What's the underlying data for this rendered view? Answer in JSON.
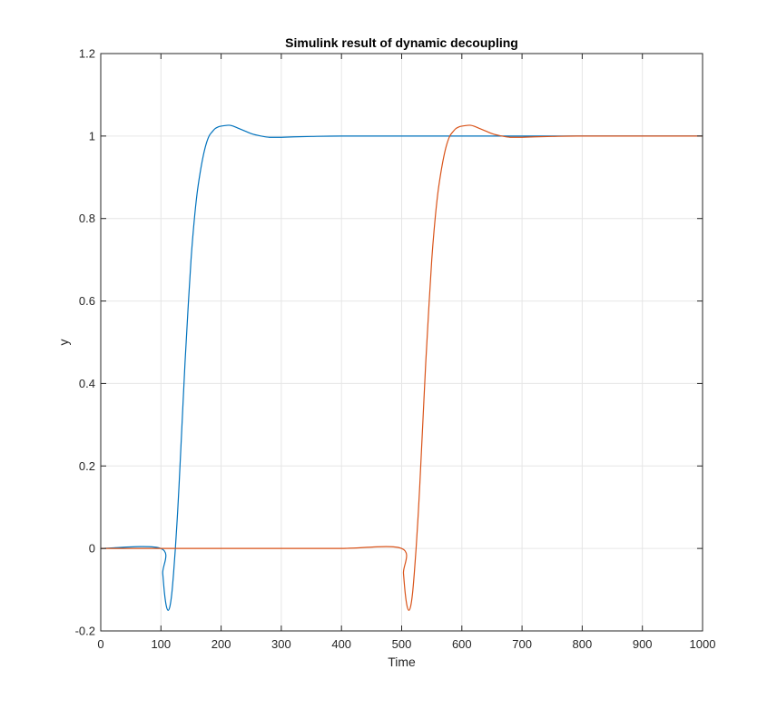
{
  "chart_data": {
    "type": "line",
    "title": "Simulink result of dynamic decoupling",
    "xlabel": "Time",
    "ylabel": "y",
    "xlim": [
      0,
      1000
    ],
    "ylim": [
      -0.2,
      1.2
    ],
    "xticks": [
      0,
      100,
      200,
      300,
      400,
      500,
      600,
      700,
      800,
      900,
      1000
    ],
    "yticks": [
      -0.2,
      0,
      0.2,
      0.4,
      0.6,
      0.8,
      1,
      1.2
    ],
    "xtick_labels": [
      "0",
      "100",
      "200",
      "300",
      "400",
      "500",
      "600",
      "700",
      "800",
      "900",
      "1000"
    ],
    "ytick_labels": [
      "-0.2",
      "0",
      "0.2",
      "0.4",
      "0.6",
      "0.8",
      "1",
      "1.2"
    ],
    "grid": true,
    "box": true,
    "series": [
      {
        "color": "#0072BD",
        "x": [
          0,
          100,
          103,
          106,
          109,
          112,
          115,
          118,
          121,
          124,
          127,
          130,
          135,
          140,
          145,
          150,
          155,
          160,
          165,
          170,
          175,
          180,
          185,
          190,
          195,
          200,
          210,
          215,
          220,
          230,
          240,
          250,
          260,
          270,
          280,
          290,
          300,
          320,
          350,
          400,
          500,
          600,
          700,
          800,
          900,
          1000
        ],
        "y": [
          0,
          0,
          -0.06,
          -0.11,
          -0.14,
          -0.15,
          -0.14,
          -0.11,
          -0.06,
          0.0,
          0.07,
          0.15,
          0.3,
          0.45,
          0.58,
          0.7,
          0.79,
          0.86,
          0.91,
          0.95,
          0.98,
          1.0,
          1.01,
          1.018,
          1.022,
          1.024,
          1.026,
          1.026,
          1.024,
          1.018,
          1.012,
          1.006,
          1.002,
          0.999,
          0.997,
          0.997,
          0.997,
          0.998,
          0.999,
          1.0,
          1.0,
          1.0,
          1.0,
          1.0,
          1.0,
          1.0
        ]
      },
      {
        "color": "#D95319",
        "x": [
          0,
          100,
          200,
          300,
          400,
          500,
          503,
          506,
          509,
          512,
          515,
          518,
          521,
          524,
          527,
          530,
          535,
          540,
          545,
          550,
          555,
          560,
          565,
          570,
          575,
          580,
          585,
          590,
          595,
          600,
          610,
          615,
          620,
          630,
          640,
          650,
          660,
          670,
          680,
          690,
          700,
          720,
          750,
          800,
          900,
          1000
        ],
        "y": [
          0,
          0,
          0,
          0,
          0,
          0,
          -0.06,
          -0.11,
          -0.14,
          -0.15,
          -0.14,
          -0.11,
          -0.06,
          0.0,
          0.07,
          0.15,
          0.3,
          0.45,
          0.58,
          0.7,
          0.79,
          0.86,
          0.91,
          0.95,
          0.98,
          1.0,
          1.01,
          1.018,
          1.022,
          1.024,
          1.026,
          1.026,
          1.024,
          1.018,
          1.012,
          1.006,
          1.002,
          0.999,
          0.997,
          0.997,
          0.997,
          0.998,
          0.999,
          1.0,
          1.0,
          1.0
        ]
      }
    ]
  }
}
